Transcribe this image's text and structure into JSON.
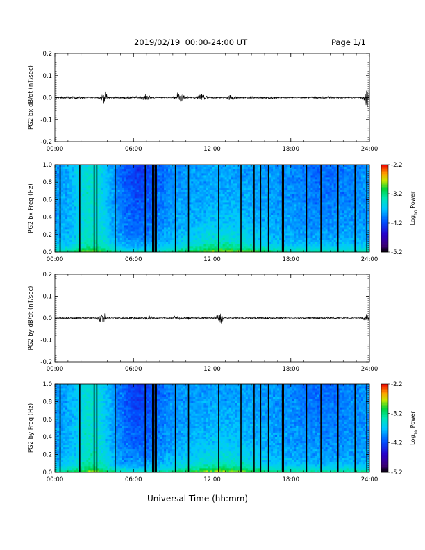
{
  "header": {
    "title": "2019/02/19  00:00-24:00 UT",
    "page": "Page 1/1"
  },
  "xlabel": "Universal Time (hh:mm)",
  "colorbar": {
    "label": "Log10 Power",
    "label_main": "Log",
    "label_sub": "10",
    "label_tail": " Power",
    "range": [
      -5.2,
      -2.2
    ],
    "ticks": [
      "-2.2",
      "-3.2",
      "-4.2",
      "-5.2"
    ],
    "colormap": "rainbow (black-purple-blue-cyan-green-yellow-orange-red)"
  },
  "chart_data": [
    {
      "type": "line",
      "ylabel": "PG2 bx dB/dt (nT/sec)",
      "xlim": [
        0,
        24
      ],
      "ylim": [
        -0.2,
        0.2
      ],
      "xticks": [
        "00:00",
        "06:00",
        "12:00",
        "18:00",
        "24:00"
      ],
      "yticks": [
        "0.2",
        "0.1",
        "0.0",
        "-0.1",
        "-0.2"
      ],
      "bursts": [
        {
          "hour": 3.8,
          "amp": 0.035
        },
        {
          "hour": 7.0,
          "amp": 0.015
        },
        {
          "hour": 9.5,
          "amp": 0.04
        },
        {
          "hour": 11.3,
          "amp": 0.03
        },
        {
          "hour": 13.5,
          "amp": 0.02
        },
        {
          "hour": 23.8,
          "amp": 0.07
        }
      ]
    },
    {
      "type": "heatmap",
      "ylabel": "PG2 bx Freq (Hz)",
      "xlim": [
        0,
        24
      ],
      "ylim": [
        0.0,
        1.0
      ],
      "xticks": [
        "00:00",
        "06:00",
        "12:00",
        "18:00",
        "24:00"
      ],
      "yticks": [
        "1.0",
        "0.8",
        "0.6",
        "0.4",
        "0.2",
        "0.0"
      ],
      "gap_hours": [
        0.4,
        1.9,
        3.0,
        3.2,
        4.6,
        6.9,
        7.5,
        7.7,
        9.2,
        10.2,
        12.5,
        14.2,
        15.2,
        15.7,
        16.3,
        17.4,
        19.2,
        20.3,
        21.6,
        22.9,
        23.8
      ]
    },
    {
      "type": "line",
      "ylabel": "PG2 by dB/dt (nT/sec)",
      "xlim": [
        0,
        24
      ],
      "ylim": [
        -0.2,
        0.2
      ],
      "xticks": [
        "00:00",
        "06:00",
        "12:00",
        "18:00",
        "24:00"
      ],
      "yticks": [
        "0.2",
        "0.1",
        "0.0",
        "-0.1",
        "-0.2"
      ],
      "bursts": [
        {
          "hour": 3.6,
          "amp": 0.04
        },
        {
          "hour": 7.1,
          "amp": 0.012
        },
        {
          "hour": 9.2,
          "amp": 0.02
        },
        {
          "hour": 12.6,
          "amp": 0.035
        },
        {
          "hour": 23.8,
          "amp": 0.02
        }
      ]
    },
    {
      "type": "heatmap",
      "ylabel": "PG2 by Freq (Hz)",
      "xlim": [
        0,
        24
      ],
      "ylim": [
        0.0,
        1.0
      ],
      "xticks": [
        "00:00",
        "06:00",
        "12:00",
        "18:00",
        "24:00"
      ],
      "yticks": [
        "1.0",
        "0.8",
        "0.6",
        "0.4",
        "0.2",
        "0.0"
      ],
      "gap_hours": [
        0.4,
        1.9,
        3.0,
        3.2,
        4.6,
        6.9,
        7.5,
        7.7,
        9.2,
        10.2,
        12.5,
        14.2,
        15.2,
        15.7,
        16.3,
        17.4,
        19.2,
        20.3,
        21.6,
        22.9,
        23.8
      ]
    }
  ]
}
